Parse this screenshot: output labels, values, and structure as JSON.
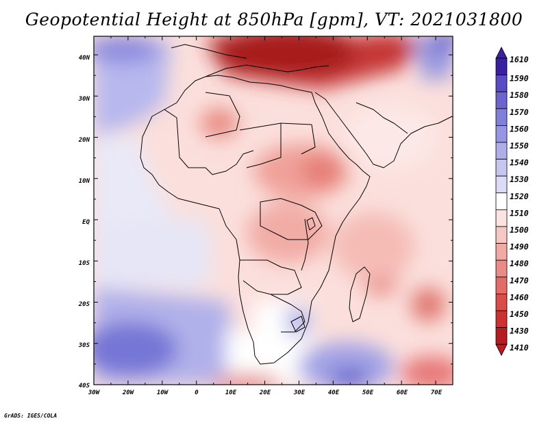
{
  "title": "Geopotential Height at 850hPa [gpm], VT: 2021031800",
  "credit": "GrADS: IGES/COLA",
  "map": {
    "lat_labels": [
      "40N",
      "30N",
      "20N",
      "10N",
      "EQ",
      "10S",
      "20S",
      "30S",
      "40S"
    ],
    "lon_labels": [
      "30W",
      "20W",
      "10W",
      "0",
      "10E",
      "20E",
      "30E",
      "40E",
      "50E",
      "60E",
      "70E"
    ],
    "lon_range": [
      -30,
      75
    ],
    "lat_range": [
      -40,
      44.5
    ]
  },
  "colorbar": {
    "labels": [
      "1610",
      "1590",
      "1580",
      "1570",
      "1560",
      "1550",
      "1540",
      "1530",
      "1520",
      "1510",
      "1500",
      "1490",
      "1480",
      "1470",
      "1460",
      "1450",
      "1430",
      "1410"
    ],
    "colors": [
      "#3a1fa0",
      "#5a4bc4",
      "#6d64cf",
      "#8080da",
      "#9696e2",
      "#aeaee9",
      "#c6c6f0",
      "#dcdcf6",
      "#ffffff",
      "#fbe3e1",
      "#f6c8c4",
      "#f0aaa4",
      "#ea8c86",
      "#e46c68",
      "#d94d4b",
      "#cc3232",
      "#b51d22"
    ]
  }
}
